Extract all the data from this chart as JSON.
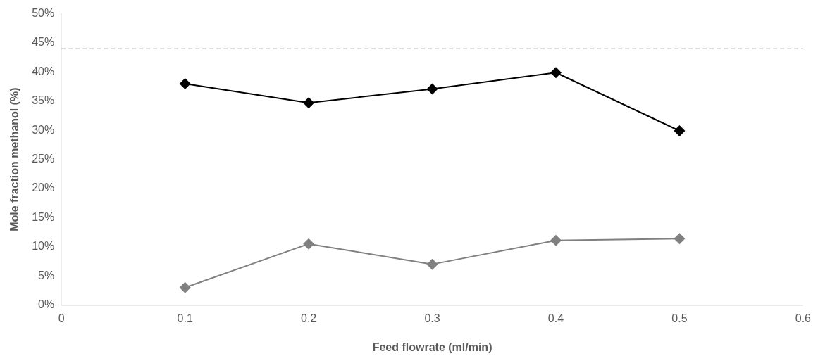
{
  "chart_data": {
    "type": "line",
    "xlabel": "Feed flowrate (ml/min)",
    "ylabel": "Mole fraction methanol (%)",
    "x": [
      0.1,
      0.2,
      0.3,
      0.4,
      0.5
    ],
    "series": [
      {
        "color": "#000000",
        "values": [
          38.0,
          34.7,
          37.1,
          39.9,
          29.9
        ]
      },
      {
        "color": "#808080",
        "values": [
          3.0,
          10.5,
          7.0,
          11.1,
          11.4
        ]
      }
    ],
    "xlim": [
      0,
      0.6
    ],
    "xticks": [
      0,
      0.1,
      0.2,
      0.3,
      0.4,
      0.5,
      0.6
    ],
    "ylim": [
      0,
      50
    ],
    "yticks": [
      {
        "value": 0,
        "label": "0%"
      },
      {
        "value": 5,
        "label": "5%"
      },
      {
        "value": 10,
        "label": "10%"
      },
      {
        "value": 15,
        "label": "15%"
      },
      {
        "value": 20,
        "label": "20%"
      },
      {
        "value": 25,
        "label": "25%"
      },
      {
        "value": 30,
        "label": "30%"
      },
      {
        "value": 35,
        "label": "35%"
      },
      {
        "value": 40,
        "label": "40%"
      },
      {
        "value": 45,
        "label": "45%"
      },
      {
        "value": 50,
        "label": "50%"
      }
    ],
    "ref_lines": [
      {
        "axis": "y",
        "value": 44,
        "color": "#bfbfbf",
        "line_style": "dashed"
      }
    ],
    "marker": "diamond",
    "line_style": "solid",
    "grid": false,
    "legend": false
  }
}
